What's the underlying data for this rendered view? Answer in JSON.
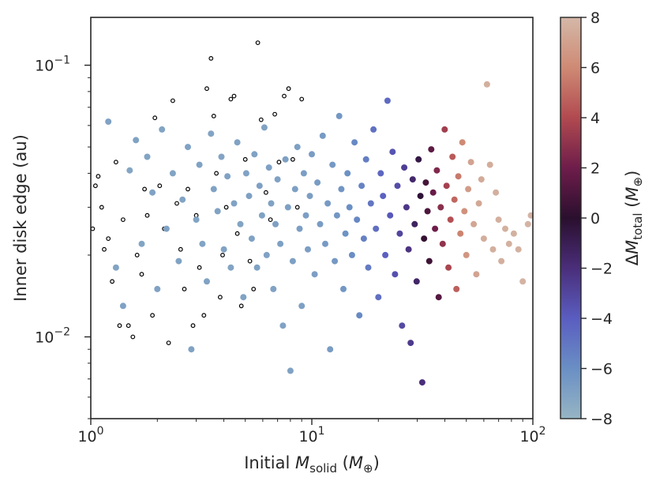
{
  "chart_data": {
    "type": "scatter",
    "title": "",
    "xlabel": "Initial M_solid (M_⊕)",
    "ylabel": "Inner disk edge (au)",
    "colorbar_label": "ΔM_total (M_⊕)",
    "xscale": "log",
    "yscale": "log",
    "xlim": [
      1,
      100
    ],
    "ylim": [
      0.005,
      0.15
    ],
    "clim": [
      -8,
      8
    ],
    "x_tick_labels": [
      {
        "value": 1,
        "base": "10",
        "exp": "0"
      },
      {
        "value": 10,
        "base": "10",
        "exp": "1"
      },
      {
        "value": 100,
        "base": "10",
        "exp": "2"
      }
    ],
    "y_tick_labels": [
      {
        "value": 0.01,
        "base": "10",
        "exp": "−2"
      },
      {
        "value": 0.1,
        "base": "10",
        "exp": "−1"
      }
    ],
    "colorbar_ticks": [
      "8",
      "6",
      "4",
      "2",
      "0",
      "−2",
      "−4",
      "−6",
      "−8"
    ],
    "colormap": [
      "#96b5c4",
      "#6a8fc4",
      "#5a5dc0",
      "#4a2e7a",
      "#2a0f2e",
      "#6e1d4a",
      "#b14a50",
      "#cf8a74",
      "#d4b8a8"
    ],
    "series": [
      {
        "name": "open markers (no ΔM_total color)",
        "marker": "open-circle",
        "points": [
          [
            1.02,
            0.025
          ],
          [
            1.05,
            0.036
          ],
          [
            1.08,
            0.039
          ],
          [
            1.12,
            0.03
          ],
          [
            1.15,
            0.021
          ],
          [
            1.2,
            0.023
          ],
          [
            1.25,
            0.016
          ],
          [
            1.3,
            0.044
          ],
          [
            1.35,
            0.011
          ],
          [
            1.4,
            0.027
          ],
          [
            1.48,
            0.011
          ],
          [
            1.55,
            0.01
          ],
          [
            1.62,
            0.02
          ],
          [
            1.7,
            0.017
          ],
          [
            1.75,
            0.035
          ],
          [
            1.8,
            0.028
          ],
          [
            1.9,
            0.012
          ],
          [
            1.95,
            0.064
          ],
          [
            2.05,
            0.036
          ],
          [
            2.15,
            0.025
          ],
          [
            2.25,
            0.0095
          ],
          [
            2.35,
            0.074
          ],
          [
            2.45,
            0.031
          ],
          [
            2.55,
            0.021
          ],
          [
            2.65,
            0.015
          ],
          [
            2.75,
            0.035
          ],
          [
            2.9,
            0.011
          ],
          [
            3.0,
            0.028
          ],
          [
            3.1,
            0.018
          ],
          [
            3.25,
            0.012
          ],
          [
            3.35,
            0.082
          ],
          [
            3.5,
            0.106
          ],
          [
            3.6,
            0.065
          ],
          [
            3.7,
            0.04
          ],
          [
            3.85,
            0.014
          ],
          [
            3.95,
            0.02
          ],
          [
            4.1,
            0.03
          ],
          [
            4.3,
            0.075
          ],
          [
            4.45,
            0.077
          ],
          [
            4.6,
            0.024
          ],
          [
            4.8,
            0.013
          ],
          [
            5.0,
            0.045
          ],
          [
            5.25,
            0.019
          ],
          [
            5.45,
            0.015
          ],
          [
            5.7,
            0.121
          ],
          [
            5.9,
            0.063
          ],
          [
            6.2,
            0.034
          ],
          [
            6.5,
            0.027
          ],
          [
            6.8,
            0.066
          ],
          [
            7.1,
            0.044
          ],
          [
            7.5,
            0.077
          ],
          [
            7.85,
            0.082
          ],
          [
            8.2,
            0.045
          ],
          [
            8.6,
            0.03
          ],
          [
            9.0,
            0.075
          ]
        ]
      },
      {
        "name": "ΔM_total colored points",
        "marker": "filled-circle",
        "points": [
          [
            1.2,
            0.062,
            -7.0
          ],
          [
            1.3,
            0.018,
            -7.1
          ],
          [
            1.4,
            0.013,
            -7.0
          ],
          [
            1.5,
            0.041,
            -7.2
          ],
          [
            1.6,
            0.053,
            -7.0
          ],
          [
            1.7,
            0.022,
            -7.1
          ],
          [
            1.8,
            0.046,
            -7.1
          ],
          [
            1.9,
            0.034,
            -7.0
          ],
          [
            2.0,
            0.015,
            -7.0
          ],
          [
            2.1,
            0.058,
            -7.1
          ],
          [
            2.2,
            0.025,
            -7.0
          ],
          [
            2.35,
            0.04,
            -7.1
          ],
          [
            2.5,
            0.019,
            -7.0
          ],
          [
            2.6,
            0.032,
            -7.1
          ],
          [
            2.75,
            0.05,
            -7.0
          ],
          [
            2.85,
            0.009,
            -7.0
          ],
          [
            3.0,
            0.027,
            -7.1
          ],
          [
            3.1,
            0.043,
            -7.0
          ],
          [
            3.2,
            0.022,
            -7.1
          ],
          [
            3.35,
            0.016,
            -7.0
          ],
          [
            3.5,
            0.056,
            -7.1
          ],
          [
            3.6,
            0.035,
            -7.0
          ],
          [
            3.75,
            0.029,
            -7.0
          ],
          [
            3.9,
            0.046,
            -7.1
          ],
          [
            4.0,
            0.021,
            -7.0
          ],
          [
            4.15,
            0.039,
            -7.0
          ],
          [
            4.3,
            0.018,
            -7.1
          ],
          [
            4.45,
            0.031,
            -7.0
          ],
          [
            4.6,
            0.052,
            -7.0
          ],
          [
            4.75,
            0.026,
            -7.1
          ],
          [
            4.9,
            0.014,
            -7.0
          ],
          [
            5.05,
            0.04,
            -7.0
          ],
          [
            5.2,
            0.033,
            -6.9
          ],
          [
            5.35,
            0.023,
            -7.0
          ],
          [
            5.5,
            0.047,
            -7.0
          ],
          [
            5.65,
            0.018,
            -7.0
          ],
          [
            5.8,
            0.036,
            -6.9
          ],
          [
            5.95,
            0.028,
            -7.0
          ],
          [
            6.1,
            0.059,
            -7.0
          ],
          [
            6.25,
            0.02,
            -7.0
          ],
          [
            6.4,
            0.042,
            -6.9
          ],
          [
            6.55,
            0.031,
            -7.0
          ],
          [
            6.7,
            0.015,
            -7.0
          ],
          [
            6.85,
            0.026,
            -6.9
          ],
          [
            7.0,
            0.038,
            -7.0
          ],
          [
            7.2,
            0.022,
            -6.9
          ],
          [
            7.4,
            0.011,
            -7.0
          ],
          [
            7.6,
            0.045,
            -6.9
          ],
          [
            7.8,
            0.03,
            -6.9
          ],
          [
            8.0,
            0.0075,
            -7.0
          ],
          [
            8.2,
            0.019,
            -6.9
          ],
          [
            8.4,
            0.035,
            -6.9
          ],
          [
            8.6,
            0.05,
            -6.9
          ],
          [
            8.8,
            0.025,
            -6.8
          ],
          [
            9.0,
            0.013,
            -6.9
          ],
          [
            9.2,
            0.04,
            -6.8
          ],
          [
            9.4,
            0.028,
            -6.8
          ],
          [
            9.6,
            0.021,
            -6.8
          ],
          [
            9.8,
            0.033,
            -6.8
          ],
          [
            10.0,
            0.047,
            -6.7
          ],
          [
            10.3,
            0.017,
            -6.8
          ],
          [
            10.6,
            0.037,
            -6.7
          ],
          [
            10.9,
            0.026,
            -6.7
          ],
          [
            11.2,
            0.055,
            -6.6
          ],
          [
            11.5,
            0.022,
            -6.6
          ],
          [
            11.8,
            0.031,
            -6.6
          ],
          [
            12.1,
            0.009,
            -6.7
          ],
          [
            12.4,
            0.043,
            -6.5
          ],
          [
            12.7,
            0.019,
            -6.5
          ],
          [
            13.0,
            0.028,
            -6.4
          ],
          [
            13.3,
            0.065,
            -6.4
          ],
          [
            13.6,
            0.035,
            -6.3
          ],
          [
            13.9,
            0.015,
            -6.4
          ],
          [
            14.2,
            0.024,
            -6.2
          ],
          [
            14.5,
            0.04,
            -6.1
          ],
          [
            14.8,
            0.03,
            -6.0
          ],
          [
            15.2,
            0.02,
            -5.9
          ],
          [
            15.6,
            0.052,
            -5.8
          ],
          [
            16.0,
            0.027,
            -5.7
          ],
          [
            16.4,
            0.012,
            -5.8
          ],
          [
            16.8,
            0.036,
            -5.5
          ],
          [
            17.2,
            0.023,
            -5.4
          ],
          [
            17.6,
            0.045,
            -5.3
          ],
          [
            18.0,
            0.018,
            -5.2
          ],
          [
            18.5,
            0.031,
            -5.0
          ],
          [
            19.0,
            0.058,
            -4.8
          ],
          [
            19.5,
            0.025,
            -4.7
          ],
          [
            20.0,
            0.014,
            -4.7
          ],
          [
            20.5,
            0.04,
            -4.4
          ],
          [
            21.0,
            0.033,
            -4.2
          ],
          [
            21.5,
            0.02,
            -4.1
          ],
          [
            22.0,
            0.074,
            -4.5
          ],
          [
            22.6,
            0.028,
            -3.8
          ],
          [
            23.2,
            0.048,
            -3.6
          ],
          [
            23.8,
            0.017,
            -3.5
          ],
          [
            24.4,
            0.036,
            -3.3
          ],
          [
            25.0,
            0.024,
            -3.0
          ],
          [
            25.6,
            0.011,
            -3.2
          ],
          [
            26.2,
            0.042,
            -2.7
          ],
          [
            26.8,
            0.03,
            -2.4
          ],
          [
            27.4,
            0.021,
            -2.2
          ],
          [
            28.0,
            0.0095,
            -2.5
          ],
          [
            28.6,
            0.038,
            -1.6
          ],
          [
            29.2,
            0.026,
            -1.3
          ],
          [
            29.8,
            0.016,
            -1.5
          ],
          [
            30.4,
            0.045,
            -0.6
          ],
          [
            31.0,
            0.033,
            -0.2
          ],
          [
            31.6,
            0.0068,
            -2.0
          ],
          [
            32.2,
            0.023,
            0.3
          ],
          [
            32.8,
            0.037,
            0.8
          ],
          [
            33.4,
            0.029,
            1.0
          ],
          [
            34.0,
            0.019,
            0.6
          ],
          [
            34.7,
            0.049,
            1.5
          ],
          [
            35.4,
            0.034,
            1.8
          ],
          [
            36.1,
            0.025,
            2.0
          ],
          [
            36.8,
            0.041,
            2.5
          ],
          [
            37.5,
            0.014,
            1.3
          ],
          [
            38.3,
            0.03,
            2.8
          ],
          [
            39.1,
            0.022,
            3.0
          ],
          [
            39.9,
            0.058,
            3.5
          ],
          [
            40.7,
            0.036,
            3.6
          ],
          [
            41.5,
            0.018,
            3.8
          ],
          [
            42.4,
            0.027,
            4.2
          ],
          [
            43.3,
            0.046,
            4.5
          ],
          [
            44.2,
            0.032,
            4.9
          ],
          [
            45.1,
            0.015,
            4.7
          ],
          [
            46.0,
            0.039,
            5.5
          ],
          [
            47.0,
            0.024,
            5.8
          ],
          [
            48.0,
            0.052,
            6.0
          ],
          [
            49.0,
            0.029,
            6.3
          ],
          [
            50.0,
            0.02,
            6.5
          ],
          [
            51.0,
            0.035,
            6.8
          ],
          [
            52.5,
            0.044,
            7.1
          ],
          [
            54.0,
            0.026,
            7.2
          ],
          [
            55.5,
            0.017,
            7.1
          ],
          [
            57.0,
            0.031,
            7.3
          ],
          [
            58.5,
            0.038,
            7.4
          ],
          [
            60.0,
            0.023,
            7.5
          ],
          [
            62.0,
            0.085,
            7.6
          ],
          [
            64.0,
            0.043,
            7.5
          ],
          [
            66.0,
            0.021,
            7.6
          ],
          [
            68.0,
            0.034,
            7.6
          ],
          [
            70.0,
            0.027,
            7.6
          ],
          [
            72.0,
            0.019,
            7.6
          ],
          [
            75.0,
            0.025,
            7.7
          ],
          [
            78.0,
            0.022,
            7.7
          ],
          [
            82.0,
            0.024,
            7.7
          ],
          [
            86.0,
            0.021,
            7.7
          ],
          [
            90.0,
            0.016,
            7.8
          ],
          [
            95.0,
            0.026,
            7.8
          ],
          [
            98.0,
            0.028,
            7.8
          ]
        ]
      }
    ]
  }
}
